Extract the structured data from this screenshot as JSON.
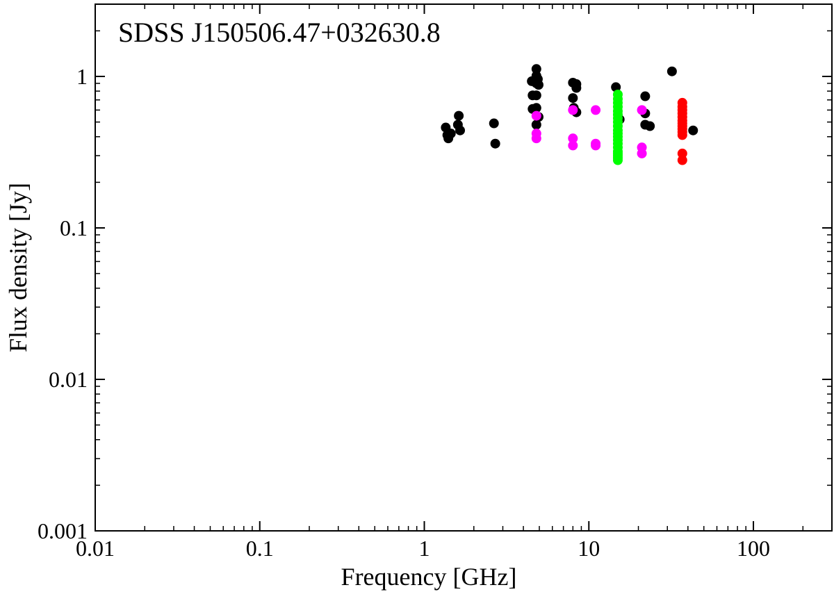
{
  "chart_data": {
    "type": "scatter",
    "title": "SDSS J150506.47+032630.8",
    "xlabel": "Frequency [GHz]",
    "ylabel": "Flux density [Jy]",
    "xscale": "log",
    "yscale": "log",
    "xlim": [
      0.01,
      300
    ],
    "ylim": [
      0.001,
      3
    ],
    "x_ticks": [
      {
        "value": 0.01,
        "label": "0.01"
      },
      {
        "value": 0.1,
        "label": "0.1"
      },
      {
        "value": 1,
        "label": "1"
      },
      {
        "value": 10,
        "label": "10"
      },
      {
        "value": 100,
        "label": "100"
      }
    ],
    "y_ticks": [
      {
        "value": 0.001,
        "label": "0.001"
      },
      {
        "value": 0.01,
        "label": "0.01"
      },
      {
        "value": 0.1,
        "label": "0.1"
      },
      {
        "value": 1,
        "label": "1"
      }
    ],
    "grid": false,
    "series": [
      {
        "color": "#000000",
        "points": [
          [
            1.35,
            0.46
          ],
          [
            1.38,
            0.41
          ],
          [
            1.4,
            0.39
          ],
          [
            1.45,
            0.42
          ],
          [
            1.6,
            0.48
          ],
          [
            1.62,
            0.55
          ],
          [
            1.65,
            0.44
          ],
          [
            2.65,
            0.49
          ],
          [
            2.7,
            0.36
          ],
          [
            4.5,
            0.93
          ],
          [
            4.55,
            0.75
          ],
          [
            4.55,
            0.61
          ],
          [
            4.8,
            1.12
          ],
          [
            4.8,
            1.01
          ],
          [
            4.8,
            0.9
          ],
          [
            4.8,
            0.75
          ],
          [
            4.8,
            0.62
          ],
          [
            4.8,
            0.48
          ],
          [
            4.9,
            0.96
          ],
          [
            4.95,
            0.88
          ],
          [
            4.95,
            0.54
          ],
          [
            8.0,
            0.91
          ],
          [
            8.0,
            0.72
          ],
          [
            8.1,
            0.62
          ],
          [
            8.4,
            0.89
          ],
          [
            8.4,
            0.84
          ],
          [
            8.4,
            0.58
          ],
          [
            14.6,
            0.85
          ],
          [
            15.4,
            0.52
          ],
          [
            22.0,
            0.74
          ],
          [
            22.0,
            0.57
          ],
          [
            22.0,
            0.48
          ],
          [
            23.5,
            0.47
          ],
          [
            32.0,
            1.08
          ],
          [
            43.0,
            0.44
          ]
        ]
      },
      {
        "color": "#ff00ff",
        "points": [
          [
            4.8,
            0.55
          ],
          [
            4.8,
            0.42
          ],
          [
            4.8,
            0.39
          ],
          [
            8.0,
            0.6
          ],
          [
            8.0,
            0.39
          ],
          [
            8.0,
            0.35
          ],
          [
            11.0,
            0.6
          ],
          [
            11.0,
            0.36
          ],
          [
            11.0,
            0.35
          ],
          [
            21.0,
            0.6
          ],
          [
            21.0,
            0.34
          ],
          [
            21.0,
            0.31
          ]
        ]
      },
      {
        "color": "#00ff00",
        "points": [
          [
            15.0,
            0.76
          ],
          [
            15.0,
            0.71
          ],
          [
            15.0,
            0.67
          ],
          [
            15.0,
            0.63
          ],
          [
            15.0,
            0.59
          ],
          [
            15.0,
            0.56
          ],
          [
            15.0,
            0.53
          ],
          [
            15.0,
            0.5
          ],
          [
            15.0,
            0.47
          ],
          [
            15.0,
            0.44
          ],
          [
            15.0,
            0.42
          ],
          [
            15.0,
            0.4
          ],
          [
            15.0,
            0.38
          ],
          [
            15.0,
            0.36
          ],
          [
            15.0,
            0.34
          ],
          [
            15.0,
            0.32
          ],
          [
            15.0,
            0.31
          ],
          [
            15.0,
            0.3
          ],
          [
            15.0,
            0.29
          ],
          [
            15.0,
            0.28
          ]
        ]
      },
      {
        "color": "#ff0000",
        "points": [
          [
            37.0,
            0.67
          ],
          [
            37.0,
            0.63
          ],
          [
            37.0,
            0.6
          ],
          [
            37.0,
            0.57
          ],
          [
            37.0,
            0.54
          ],
          [
            37.0,
            0.51
          ],
          [
            37.0,
            0.49
          ],
          [
            37.0,
            0.47
          ],
          [
            37.0,
            0.45
          ],
          [
            37.0,
            0.43
          ],
          [
            37.0,
            0.41
          ],
          [
            37.0,
            0.31
          ],
          [
            37.0,
            0.28
          ]
        ]
      }
    ]
  }
}
